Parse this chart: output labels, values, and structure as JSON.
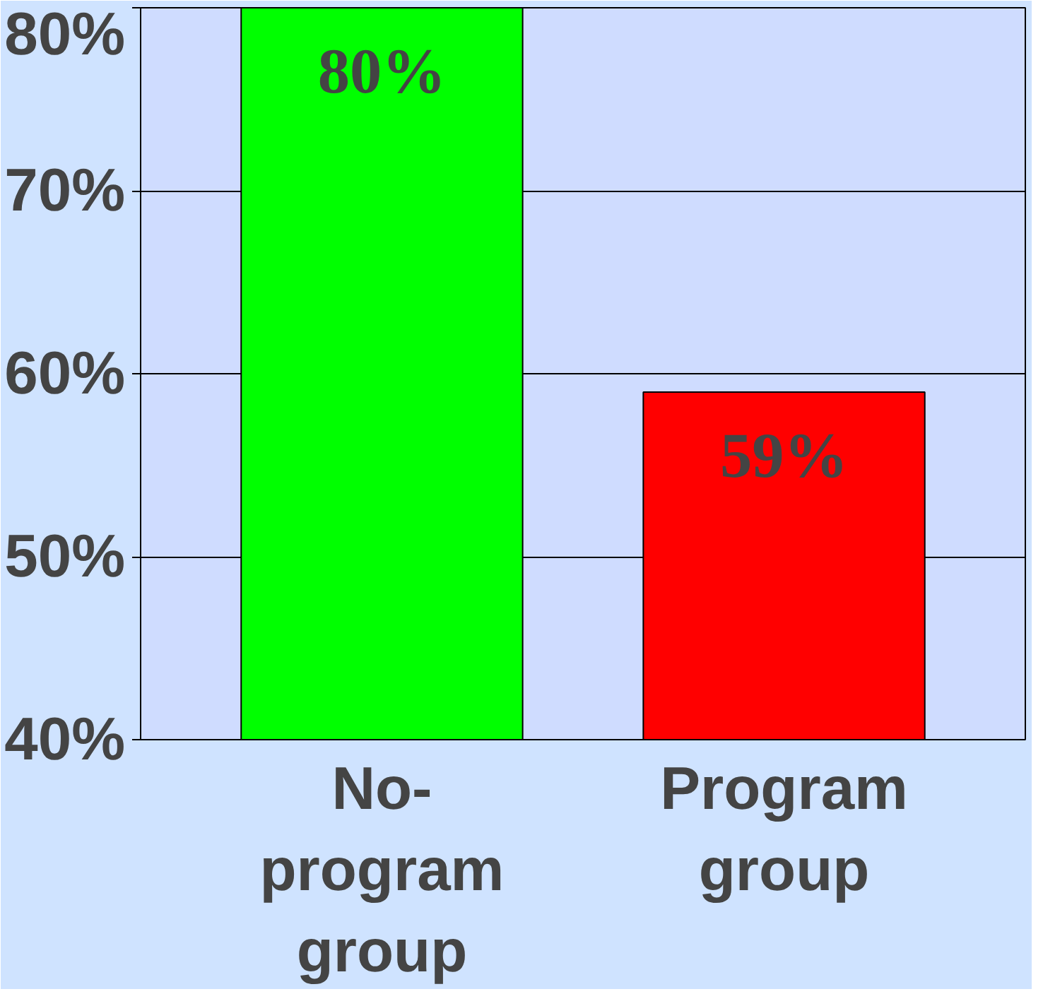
{
  "chart_data": {
    "type": "bar",
    "categories": [
      "No-program group",
      "Program group"
    ],
    "values": [
      80,
      59
    ],
    "colors": [
      "#00ff00",
      "#ff0000"
    ],
    "value_labels": [
      "80%",
      "59%"
    ],
    "ylim": [
      40,
      80
    ],
    "yticks": [
      {
        "value": 40,
        "label": "40%"
      },
      {
        "value": 50,
        "label": "50%"
      },
      {
        "value": 60,
        "label": "60%"
      },
      {
        "value": 70,
        "label": "70%"
      },
      {
        "value": 80,
        "label": "80%"
      }
    ],
    "grid": "y"
  }
}
